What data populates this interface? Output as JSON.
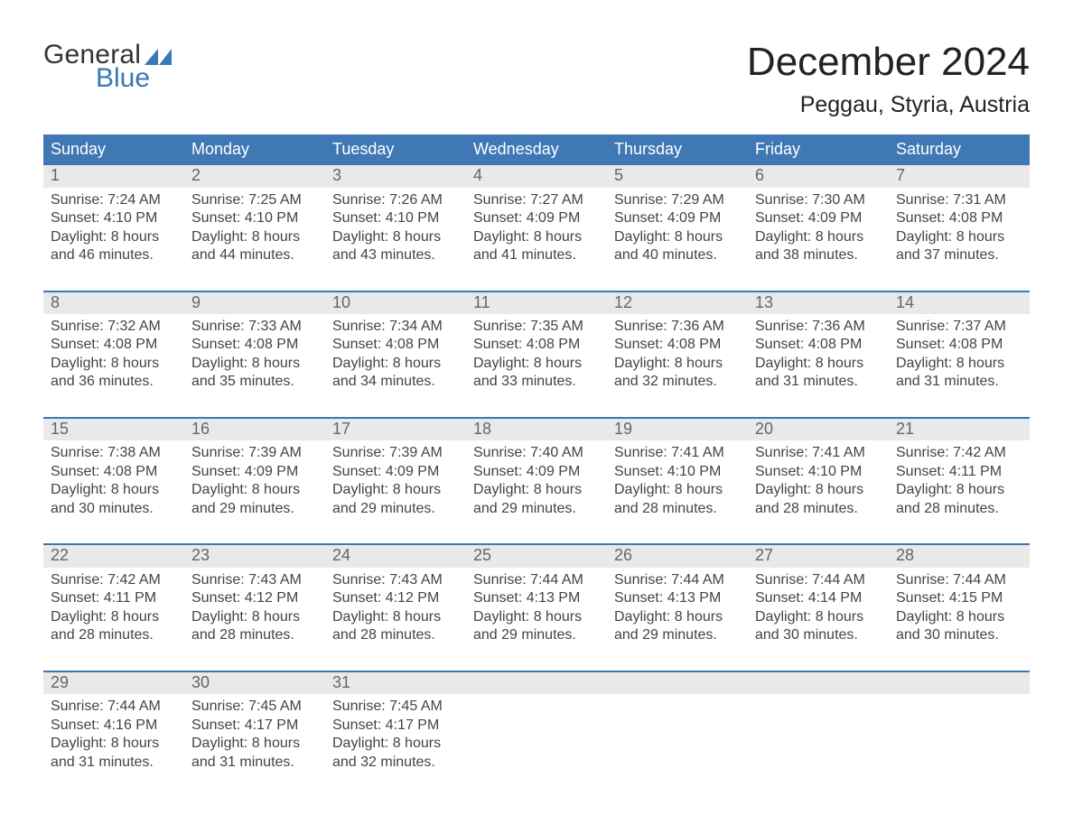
{
  "brand": {
    "part1": "General",
    "part2": "Blue"
  },
  "title": "December 2024",
  "location": "Peggau, Styria, Austria",
  "colors": {
    "brand_blue": "#3a78b6",
    "header_blue": "#3f78b4",
    "daybar_bg": "#e9e9e9",
    "divider_blue": "#3a78b6",
    "text_dark": "#333333",
    "daynum_gray": "#666666",
    "page_bg": "#ffffff"
  },
  "typography": {
    "month_title_fontsize": 44,
    "location_fontsize": 25,
    "weekday_fontsize": 18,
    "daynum_fontsize": 18,
    "cell_fontsize": 16
  },
  "weekdays": [
    "Sunday",
    "Monday",
    "Tuesday",
    "Wednesday",
    "Thursday",
    "Friday",
    "Saturday"
  ],
  "labels": {
    "sunrise": "Sunrise",
    "sunset": "Sunset",
    "daylight": "Daylight"
  },
  "weeks": [
    [
      {
        "day": 1,
        "sunrise": "7:24 AM",
        "sunset": "4:10 PM",
        "daylight": "8 hours and 46 minutes."
      },
      {
        "day": 2,
        "sunrise": "7:25 AM",
        "sunset": "4:10 PM",
        "daylight": "8 hours and 44 minutes."
      },
      {
        "day": 3,
        "sunrise": "7:26 AM",
        "sunset": "4:10 PM",
        "daylight": "8 hours and 43 minutes."
      },
      {
        "day": 4,
        "sunrise": "7:27 AM",
        "sunset": "4:09 PM",
        "daylight": "8 hours and 41 minutes."
      },
      {
        "day": 5,
        "sunrise": "7:29 AM",
        "sunset": "4:09 PM",
        "daylight": "8 hours and 40 minutes."
      },
      {
        "day": 6,
        "sunrise": "7:30 AM",
        "sunset": "4:09 PM",
        "daylight": "8 hours and 38 minutes."
      },
      {
        "day": 7,
        "sunrise": "7:31 AM",
        "sunset": "4:08 PM",
        "daylight": "8 hours and 37 minutes."
      }
    ],
    [
      {
        "day": 8,
        "sunrise": "7:32 AM",
        "sunset": "4:08 PM",
        "daylight": "8 hours and 36 minutes."
      },
      {
        "day": 9,
        "sunrise": "7:33 AM",
        "sunset": "4:08 PM",
        "daylight": "8 hours and 35 minutes."
      },
      {
        "day": 10,
        "sunrise": "7:34 AM",
        "sunset": "4:08 PM",
        "daylight": "8 hours and 34 minutes."
      },
      {
        "day": 11,
        "sunrise": "7:35 AM",
        "sunset": "4:08 PM",
        "daylight": "8 hours and 33 minutes."
      },
      {
        "day": 12,
        "sunrise": "7:36 AM",
        "sunset": "4:08 PM",
        "daylight": "8 hours and 32 minutes."
      },
      {
        "day": 13,
        "sunrise": "7:36 AM",
        "sunset": "4:08 PM",
        "daylight": "8 hours and 31 minutes."
      },
      {
        "day": 14,
        "sunrise": "7:37 AM",
        "sunset": "4:08 PM",
        "daylight": "8 hours and 31 minutes."
      }
    ],
    [
      {
        "day": 15,
        "sunrise": "7:38 AM",
        "sunset": "4:08 PM",
        "daylight": "8 hours and 30 minutes."
      },
      {
        "day": 16,
        "sunrise": "7:39 AM",
        "sunset": "4:09 PM",
        "daylight": "8 hours and 29 minutes."
      },
      {
        "day": 17,
        "sunrise": "7:39 AM",
        "sunset": "4:09 PM",
        "daylight": "8 hours and 29 minutes."
      },
      {
        "day": 18,
        "sunrise": "7:40 AM",
        "sunset": "4:09 PM",
        "daylight": "8 hours and 29 minutes."
      },
      {
        "day": 19,
        "sunrise": "7:41 AM",
        "sunset": "4:10 PM",
        "daylight": "8 hours and 28 minutes."
      },
      {
        "day": 20,
        "sunrise": "7:41 AM",
        "sunset": "4:10 PM",
        "daylight": "8 hours and 28 minutes."
      },
      {
        "day": 21,
        "sunrise": "7:42 AM",
        "sunset": "4:11 PM",
        "daylight": "8 hours and 28 minutes."
      }
    ],
    [
      {
        "day": 22,
        "sunrise": "7:42 AM",
        "sunset": "4:11 PM",
        "daylight": "8 hours and 28 minutes."
      },
      {
        "day": 23,
        "sunrise": "7:43 AM",
        "sunset": "4:12 PM",
        "daylight": "8 hours and 28 minutes."
      },
      {
        "day": 24,
        "sunrise": "7:43 AM",
        "sunset": "4:12 PM",
        "daylight": "8 hours and 28 minutes."
      },
      {
        "day": 25,
        "sunrise": "7:44 AM",
        "sunset": "4:13 PM",
        "daylight": "8 hours and 29 minutes."
      },
      {
        "day": 26,
        "sunrise": "7:44 AM",
        "sunset": "4:13 PM",
        "daylight": "8 hours and 29 minutes."
      },
      {
        "day": 27,
        "sunrise": "7:44 AM",
        "sunset": "4:14 PM",
        "daylight": "8 hours and 30 minutes."
      },
      {
        "day": 28,
        "sunrise": "7:44 AM",
        "sunset": "4:15 PM",
        "daylight": "8 hours and 30 minutes."
      }
    ],
    [
      {
        "day": 29,
        "sunrise": "7:44 AM",
        "sunset": "4:16 PM",
        "daylight": "8 hours and 31 minutes."
      },
      {
        "day": 30,
        "sunrise": "7:45 AM",
        "sunset": "4:17 PM",
        "daylight": "8 hours and 31 minutes."
      },
      {
        "day": 31,
        "sunrise": "7:45 AM",
        "sunset": "4:17 PM",
        "daylight": "8 hours and 32 minutes."
      },
      null,
      null,
      null,
      null
    ]
  ]
}
